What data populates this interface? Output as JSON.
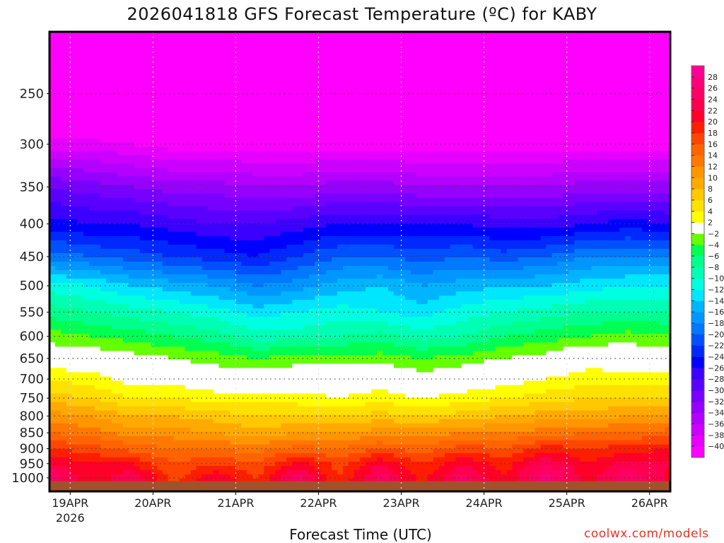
{
  "chart_data": {
    "type": "heatmap",
    "title": "2026041818 GFS Forecast Temperature (ºC) for KABY",
    "xlabel": "Forecast Time (UTC)",
    "ylabel": "",
    "credit": "coolwx.com/models",
    "x_unit": "days since 19APR 00Z",
    "xlim": [
      -0.25,
      7.25
    ],
    "ylim_hpa": [
      1050,
      200
    ],
    "y_scale": "log-pressure",
    "surface_pressure_hpa": 1012,
    "x_ticks": [
      {
        "value": 0,
        "label": "19APR",
        "sublabel": "2026"
      },
      {
        "value": 1,
        "label": "20APR"
      },
      {
        "value": 2,
        "label": "21APR"
      },
      {
        "value": 3,
        "label": "22APR"
      },
      {
        "value": 4,
        "label": "23APR"
      },
      {
        "value": 5,
        "label": "24APR"
      },
      {
        "value": 6,
        "label": "25APR"
      },
      {
        "value": 7,
        "label": "26APR"
      }
    ],
    "y_ticks": [
      250,
      300,
      350,
      400,
      450,
      500,
      550,
      600,
      650,
      700,
      750,
      800,
      850,
      900,
      950,
      1000
    ],
    "grid": "dotted",
    "times": [
      -0.25,
      0.25,
      0.75,
      1.25,
      1.75,
      2.25,
      2.75,
      3.25,
      3.75,
      4.25,
      4.75,
      5.25,
      5.75,
      6.25,
      6.75,
      7.25
    ],
    "levels": [
      200,
      250,
      300,
      350,
      400,
      450,
      500,
      550,
      600,
      650,
      700,
      750,
      800,
      850,
      900,
      950,
      1000
    ],
    "values": [
      [
        -56,
        -56,
        -57,
        -57,
        -57,
        -57,
        -57,
        -58,
        -58,
        -58,
        -58,
        -58,
        -58,
        -58,
        -58,
        -58
      ],
      [
        -49,
        -50,
        -50,
        -50,
        -51,
        -51,
        -51,
        -51,
        -51,
        -51,
        -51,
        -51,
        -51,
        -51,
        -51,
        -51
      ],
      [
        -39,
        -39,
        -40,
        -41,
        -41,
        -41,
        -41,
        -41,
        -41,
        -41,
        -41,
        -41,
        -41,
        -41,
        -41,
        -41
      ],
      [
        -30,
        -31,
        -32,
        -33,
        -33,
        -34,
        -34,
        -33,
        -33,
        -34,
        -34,
        -34,
        -34,
        -33,
        -33,
        -33
      ],
      [
        -25,
        -26,
        -26,
        -27,
        -28,
        -28,
        -27,
        -26,
        -26,
        -26,
        -26,
        -27,
        -27,
        -26,
        -25,
        -26
      ],
      [
        -19,
        -20,
        -21,
        -22,
        -23,
        -24,
        -22,
        -20,
        -20,
        -21,
        -20,
        -21,
        -20,
        -18,
        -18,
        -18
      ],
      [
        -11,
        -12,
        -14,
        -15,
        -16,
        -18,
        -17,
        -15,
        -14,
        -16,
        -15,
        -14,
        -14,
        -13,
        -12,
        -12
      ],
      [
        -7,
        -8,
        -9,
        -10,
        -11,
        -13,
        -12,
        -11,
        -12,
        -13,
        -11,
        -10,
        -9,
        -8,
        -8,
        -8
      ],
      [
        -3,
        -4,
        -5,
        -6,
        -7,
        -9,
        -9,
        -8,
        -7,
        -9,
        -8,
        -6,
        -5,
        -4,
        -3,
        -4
      ],
      [
        0,
        0,
        -1,
        -2,
        -3,
        -4,
        -3,
        -3,
        -3,
        -4,
        -3,
        -2,
        -1,
        1,
        0,
        0
      ],
      [
        4,
        3,
        1,
        1,
        0,
        0,
        0,
        0,
        1,
        -1,
        0,
        1,
        2,
        3,
        3,
        3
      ],
      [
        7,
        6,
        4,
        4,
        3,
        3,
        3,
        2,
        3,
        2,
        3,
        4,
        5,
        6,
        6,
        6
      ],
      [
        11,
        10,
        8,
        8,
        7,
        6,
        6,
        6,
        7,
        6,
        7,
        8,
        9,
        9,
        10,
        10
      ],
      [
        14,
        13,
        11,
        11,
        10,
        9,
        10,
        10,
        11,
        11,
        12,
        12,
        13,
        14,
        14,
        15
      ],
      [
        18,
        17,
        15,
        14,
        14,
        13,
        15,
        14,
        16,
        15,
        17,
        16,
        19,
        18,
        19,
        20
      ],
      [
        22,
        20,
        20,
        16,
        18,
        16,
        21,
        17,
        22,
        18,
        22,
        19,
        24,
        20,
        23,
        22
      ],
      [
        26,
        20,
        24,
        17,
        22,
        18,
        25,
        18,
        25,
        19,
        25,
        20,
        27,
        21,
        26,
        21
      ]
    ],
    "colorbar": {
      "boundaries": [
        -40,
        -38,
        -36,
        -34,
        -32,
        -30,
        -28,
        -26,
        -24,
        -22,
        -20,
        -18,
        -16,
        -14,
        -12,
        -10,
        -8,
        -6,
        -4,
        -2,
        2,
        4,
        6,
        8,
        10,
        12,
        14,
        16,
        18,
        20,
        22,
        24,
        26,
        28
      ],
      "labels": [
        "-40",
        "-38",
        "-36",
        "-34",
        "-32",
        "-30",
        "-28",
        "-26",
        "-24",
        "-22",
        "-20",
        "-18",
        "-16",
        "-14",
        "-12",
        "-10",
        "-8",
        "-6",
        "-4",
        "-2",
        "2",
        "4",
        "6",
        "8",
        "10",
        "12",
        "14",
        "16",
        "18",
        "20",
        "22",
        "24",
        "26",
        "28"
      ],
      "colors": [
        "#ff00ff",
        "#e600ff",
        "#cc00ff",
        "#b400ff",
        "#9600ff",
        "#7800ff",
        "#5a00ff",
        "#3c00ff",
        "#0000ff",
        "#0028ff",
        "#0050ff",
        "#0078ff",
        "#0096ff",
        "#00b4ff",
        "#00e6ff",
        "#00ffe0",
        "#00ffb4",
        "#00ff8c",
        "#00ff50",
        "#64ff00",
        "#ffffff",
        "#ffff00",
        "#ffe100",
        "#ffc800",
        "#ffaa00",
        "#ff9600",
        "#ff7800",
        "#ff6400",
        "#ff4600",
        "#ff1e00",
        "#ff0028",
        "#ff0050",
        "#ff0064",
        "#ff0078",
        "#ff0096"
      ]
    },
    "ground_color": "#a0522d"
  }
}
